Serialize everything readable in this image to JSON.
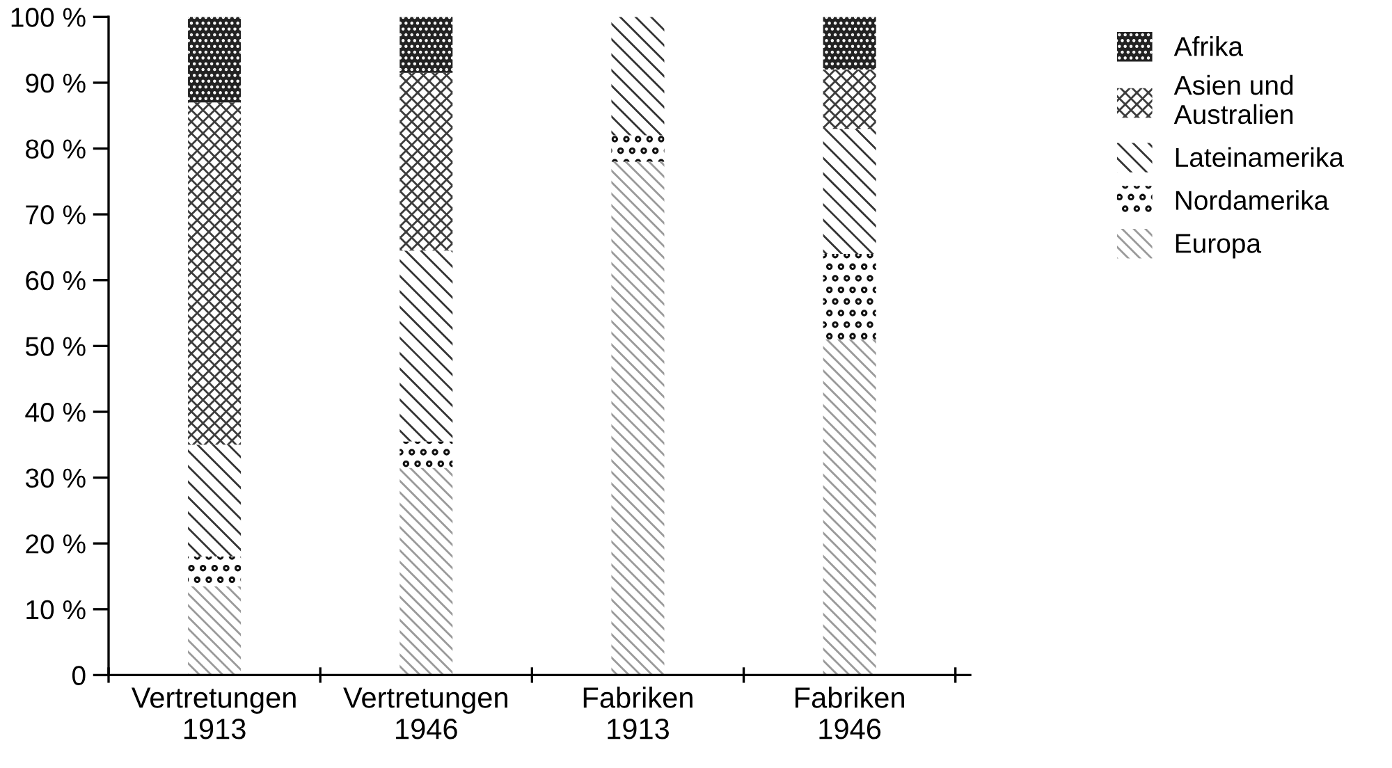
{
  "chart_data": {
    "type": "bar",
    "stacked": true,
    "categories": [
      "Vertretungen\n1913",
      "Vertretungen\n1946",
      "Fabriken\n1913",
      "Fabriken\n1946"
    ],
    "series": [
      {
        "name": "Europa",
        "color": "#9a9a9a",
        "values": [
          13.5,
          31.5,
          78,
          51
        ]
      },
      {
        "name": "Nordamerika",
        "color": "#111111",
        "values": [
          4.5,
          4,
          4,
          13
        ]
      },
      {
        "name": "Lateinamerika",
        "color": "#333333",
        "values": [
          17,
          29,
          18,
          19
        ]
      },
      {
        "name": "Asien und\nAustralien",
        "color": "#3c3c3c",
        "values": [
          52,
          27,
          0,
          9
        ]
      },
      {
        "name": "Afrika",
        "color": "#222222",
        "values": [
          13,
          8.5,
          0,
          8
        ]
      }
    ],
    "ylim": [
      0,
      100
    ],
    "yticks": [
      0,
      {
        "value": 10,
        "label": "10 %"
      },
      {
        "value": 20,
        "label": "20 %"
      },
      {
        "value": 30,
        "label": "30 %"
      },
      {
        "value": 40,
        "label": "40 %"
      },
      {
        "value": 50,
        "label": "50 %"
      },
      {
        "value": 60,
        "label": "60 %"
      },
      {
        "value": 70,
        "label": "70 %"
      },
      {
        "value": 80,
        "label": "80 %"
      },
      {
        "value": 90,
        "label": "90 %"
      },
      {
        "value": 100,
        "label": "100 %"
      }
    ],
    "grid": false,
    "legend": "top right"
  }
}
